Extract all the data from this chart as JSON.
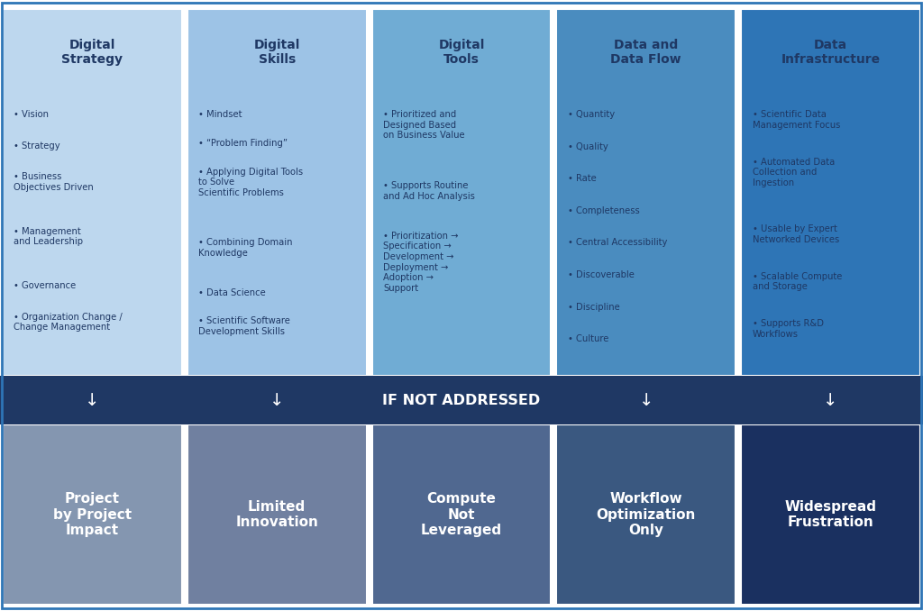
{
  "columns": [
    {
      "header": "Digital\nStrategy",
      "bullets": [
        "Vision",
        "Strategy",
        "Business\nObjectives Driven",
        "Management\nand Leadership",
        "Governance",
        "Organization Change /\nChange Management"
      ],
      "top_color": "#bdd7ee",
      "bottom_text": "Project\nby Project\nImpact",
      "bottom_color": "#8496b0"
    },
    {
      "header": "Digital\nSkills",
      "bullets": [
        "Mindset",
        "“Problem Finding”",
        "Applying Digital Tools\nto Solve\nScientific Problems",
        "Combining Domain\nKnowledge",
        "Data Science",
        "Scientific Software\nDevelopment Skills"
      ],
      "top_color": "#9dc3e6",
      "bottom_text": "Limited\nInnovation",
      "bottom_color": "#7080a0"
    },
    {
      "header": "Digital\nTools",
      "bullets": [
        "Prioritized and\nDesigned Based\non Business Value",
        "Supports Routine\nand Ad Hoc Analysis",
        "Prioritization →\nSpecification →\nDevelopment →\nDeployment →\nAdoption →\nSupport"
      ],
      "top_color": "#70acd4",
      "bottom_text": "Compute\nNot\nLeveraged",
      "bottom_color": "#506890"
    },
    {
      "header": "Data and\nData Flow",
      "bullets": [
        "Quantity",
        "Quality",
        "Rate",
        "Completeness",
        "Central Accessibility",
        "Discoverable",
        "Discipline",
        "Culture"
      ],
      "top_color": "#4a8cbf",
      "bottom_text": "Workflow\nOptimization\nOnly",
      "bottom_color": "#3a5880"
    },
    {
      "header": "Data\nInfrastructure",
      "bullets": [
        "Scientific Data\nManagement Focus",
        "Automated Data\nCollection and\nIngestion",
        "Usable by Expert\nNetworked Devices",
        "Scalable Compute\nand Storage",
        "Supports R&D\nWorkflows"
      ],
      "top_color": "#2e75b6",
      "bottom_text": "Widespread\nFrustration",
      "bottom_color": "#1a3060"
    }
  ],
  "middle_bar_color": "#1f3864",
  "middle_bar_text": "IF NOT ADDRESSED",
  "middle_bar_text_color": "#ffffff",
  "header_text_color": "#1f3864",
  "bullet_text_color": "#1f3864",
  "bottom_text_color": "#ffffff",
  "fig_width": 10.24,
  "fig_height": 6.78,
  "background_color": "#ffffff",
  "outer_border_color": "#2e75b6"
}
